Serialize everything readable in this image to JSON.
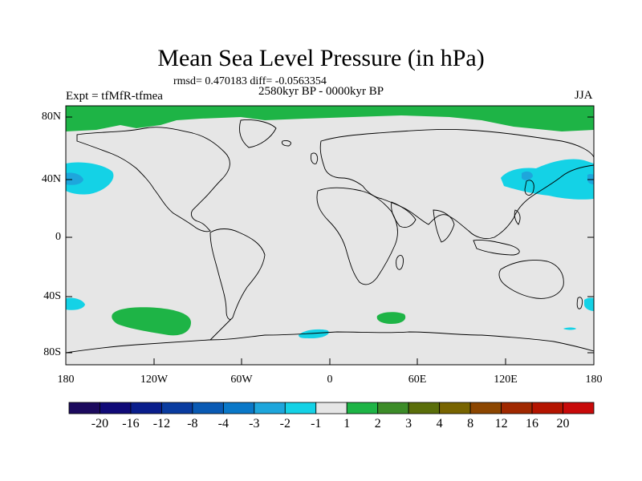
{
  "title": "Mean Sea Level Pressure (in hPa)",
  "stats": "rmsd= 0.470183 diff= -0.0563354",
  "experiment": "Expt = tfMfR-tfmea",
  "period": "2580kyr BP - 0000kyr BP",
  "season": "JJA",
  "lat_labels": [
    "80N",
    "40N",
    "0",
    "40S",
    "80S"
  ],
  "lon_labels": [
    "180",
    "120W",
    "60W",
    "0",
    "60E",
    "120E",
    "180"
  ],
  "colorbar": {
    "labels": [
      "-20",
      "-16",
      "-12",
      "-8",
      "-4",
      "-3",
      "-2",
      "-1",
      "1",
      "2",
      "3",
      "4",
      "8",
      "12",
      "16",
      "20"
    ],
    "colors": [
      "#1c0a5e",
      "#100a78",
      "#0a1e8c",
      "#0a3ca0",
      "#0a5ab4",
      "#0a78c8",
      "#1ea6dc",
      "#14d2e6",
      "#e6e6e6",
      "#1eb446",
      "#3c8c28",
      "#5a6e0a",
      "#786400",
      "#8c4600",
      "#a02800",
      "#b41400",
      "#c80a0a"
    ]
  },
  "map_colors": {
    "background": "#e6e6e6",
    "positive_1_2": "#1eb446",
    "negative_1_2": "#14d2e6",
    "negative_2_3": "#1ea6dc"
  }
}
